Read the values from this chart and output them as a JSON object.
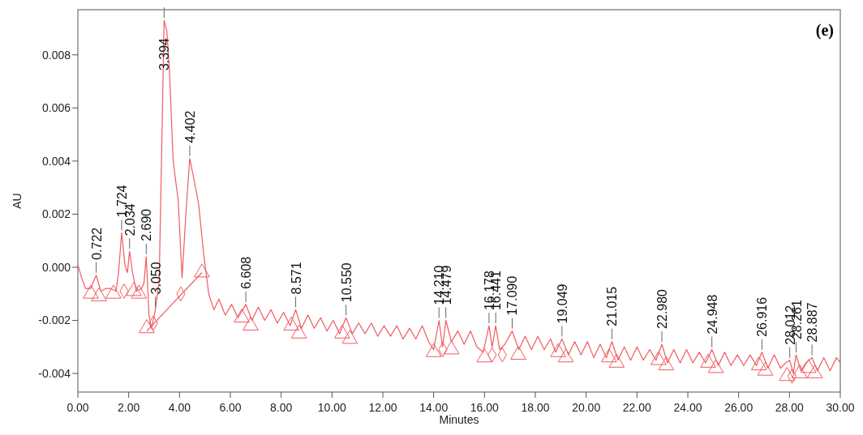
{
  "chart_data": {
    "type": "line",
    "xlabel": "Minutes",
    "ylabel": "AU",
    "xlim": [
      0,
      30
    ],
    "ylim": [
      -0.0047,
      0.0097
    ],
    "xticks": [
      {
        "value": 0,
        "label": "0.00"
      },
      {
        "value": 2,
        "label": "2.00"
      },
      {
        "value": 4,
        "label": "4.00"
      },
      {
        "value": 6,
        "label": "6.00"
      },
      {
        "value": 8,
        "label": "8.00"
      },
      {
        "value": 10,
        "label": "10.00"
      },
      {
        "value": 12,
        "label": "12.00"
      },
      {
        "value": 14,
        "label": "14.00"
      },
      {
        "value": 16,
        "label": "16.00"
      },
      {
        "value": 18,
        "label": "18.00"
      },
      {
        "value": 20,
        "label": "20.00"
      },
      {
        "value": 22,
        "label": "22.00"
      },
      {
        "value": 24,
        "label": "24.00"
      },
      {
        "value": 26,
        "label": "26.00"
      },
      {
        "value": 28,
        "label": "28.00"
      },
      {
        "value": 30,
        "label": "30.00"
      }
    ],
    "yticks": [
      -0.004,
      -0.002,
      {
        "value": 0,
        "label": "0.000"
      },
      0.002,
      0.004,
      0.006,
      0.008
    ],
    "grid": false,
    "series": [
      {
        "color": "#f05a5f",
        "marker": "none",
        "x": [
          0,
          0.15,
          0.3,
          0.5,
          0.722,
          0.9,
          1.1,
          1.3,
          1.5,
          1.6,
          1.724,
          1.85,
          1.95,
          2.034,
          2.15,
          2.3,
          2.5,
          2.6,
          2.69,
          2.8,
          2.9,
          3.05,
          3.2,
          3.3,
          3.394,
          3.5,
          3.6,
          3.75,
          3.95,
          4.1,
          4.25,
          4.402,
          4.55,
          4.75,
          4.95,
          5.15,
          5.35,
          5.55,
          5.8,
          6.05,
          6.3,
          6.608,
          6.85,
          7.1,
          7.35,
          7.6,
          7.85,
          8.1,
          8.35,
          8.571,
          8.8,
          9.05,
          9.3,
          9.55,
          9.8,
          10.05,
          10.3,
          10.55,
          10.8,
          11.05,
          11.3,
          11.55,
          11.8,
          12.05,
          12.3,
          12.55,
          12.8,
          13.05,
          13.3,
          13.55,
          13.8,
          14.0,
          14.21,
          14.35,
          14.479,
          14.7,
          14.95,
          15.2,
          15.45,
          15.7,
          15.95,
          16.178,
          16.3,
          16.441,
          16.6,
          16.8,
          17.09,
          17.35,
          17.6,
          17.85,
          18.1,
          18.35,
          18.6,
          18.8,
          19.049,
          19.3,
          19.55,
          19.8,
          20.05,
          20.3,
          20.55,
          20.8,
          21.015,
          21.25,
          21.5,
          21.75,
          22.0,
          22.25,
          22.5,
          22.75,
          22.98,
          23.2,
          23.45,
          23.7,
          23.95,
          24.2,
          24.45,
          24.7,
          24.948,
          25.2,
          25.45,
          25.7,
          25.95,
          26.2,
          26.45,
          26.7,
          26.916,
          27.15,
          27.4,
          27.65,
          27.85,
          28.012,
          28.15,
          28.261,
          28.45,
          28.65,
          28.887,
          29.1,
          29.35,
          29.6,
          29.85,
          30
        ],
        "values": [
          0.0001,
          -0.0004,
          -0.0008,
          -0.0008,
          -0.0003,
          -0.0009,
          -0.0008,
          -0.0008,
          -0.0009,
          -0.0002,
          0.0013,
          0.0001,
          -0.0002,
          0.0006,
          -0.0002,
          -0.0009,
          -0.0008,
          -0.0006,
          0.0004,
          -0.0018,
          -0.0023,
          -0.0016,
          -0.0005,
          0.0045,
          0.0093,
          0.0089,
          0.0075,
          0.004,
          0.0025,
          -0.0004,
          0.002,
          0.0041,
          0.0034,
          0.0024,
          0.0005,
          -0.001,
          -0.0016,
          -0.0012,
          -0.0018,
          -0.0014,
          -0.0019,
          -0.0014,
          -0.002,
          -0.0015,
          -0.002,
          -0.0016,
          -0.0021,
          -0.0017,
          -0.0022,
          -0.0016,
          -0.0023,
          -0.0018,
          -0.0023,
          -0.0019,
          -0.0024,
          -0.002,
          -0.0025,
          -0.0019,
          -0.0025,
          -0.0021,
          -0.0025,
          -0.0021,
          -0.0026,
          -0.0022,
          -0.0026,
          -0.0022,
          -0.0027,
          -0.0023,
          -0.0027,
          -0.0022,
          -0.0028,
          -0.0031,
          -0.002,
          -0.003,
          -0.002,
          -0.0028,
          -0.0024,
          -0.0029,
          -0.0024,
          -0.003,
          -0.0032,
          -0.0022,
          -0.003,
          -0.0022,
          -0.0031,
          -0.0029,
          -0.0024,
          -0.0031,
          -0.0026,
          -0.0031,
          -0.0026,
          -0.0031,
          -0.0027,
          -0.0032,
          -0.0027,
          -0.0033,
          -0.0028,
          -0.0033,
          -0.0028,
          -0.0034,
          -0.0029,
          -0.0034,
          -0.0028,
          -0.0035,
          -0.003,
          -0.0035,
          -0.003,
          -0.0035,
          -0.0031,
          -0.0035,
          -0.0029,
          -0.0036,
          -0.0031,
          -0.0036,
          -0.0031,
          -0.0036,
          -0.0032,
          -0.0036,
          -0.0031,
          -0.0037,
          -0.0032,
          -0.0037,
          -0.0033,
          -0.0037,
          -0.0033,
          -0.0037,
          -0.0032,
          -0.0038,
          -0.0033,
          -0.0038,
          -0.0036,
          -0.0035,
          -0.004,
          -0.0033,
          -0.0039,
          -0.0036,
          -0.0034,
          -0.0039,
          -0.0034,
          -0.0039,
          -0.0034,
          -0.0036
        ]
      },
      {
        "type": "line",
        "color": "#f05a5f",
        "marker": "none",
        "x": [
          2.71,
          4.88
        ],
        "values": [
          -0.0024,
          -0.0002
        ]
      },
      {
        "type": "scatter",
        "color": "#f05a5f",
        "marker": "triangle",
        "x": [
          0.51,
          0.83,
          1.4,
          2.2,
          2.4,
          2.71,
          4.88,
          6.45,
          6.8,
          8.4,
          8.7,
          10.4,
          10.7,
          14.0,
          14.7,
          16.0,
          17.33,
          18.9,
          19.2,
          20.9,
          21.2,
          22.85,
          23.15,
          24.8,
          25.1,
          26.8,
          27.05,
          27.9,
          28.4,
          28.75,
          29.0
        ],
        "values": [
          -0.001,
          -0.0011,
          -0.001,
          -0.0009,
          -0.001,
          -0.0023,
          -0.0002,
          -0.0019,
          -0.0022,
          -0.0022,
          -0.0025,
          -0.0025,
          -0.0027,
          -0.0032,
          -0.0031,
          -0.0034,
          -0.0033,
          -0.0032,
          -0.0034,
          -0.0034,
          -0.0036,
          -0.0035,
          -0.0037,
          -0.0036,
          -0.0038,
          -0.0037,
          -0.0039,
          -0.0041,
          -0.004,
          -0.0038,
          -0.004
        ]
      },
      {
        "type": "scatter",
        "color": "#f05a5f",
        "marker": "diamond",
        "x": [
          1.82,
          2.97,
          4.05,
          14.36,
          16.3,
          16.7,
          28.1
        ],
        "values": [
          -0.0009,
          -0.0021,
          -0.001,
          -0.0031,
          -0.0033,
          -0.0033,
          -0.0041
        ]
      }
    ],
    "annotations": [
      {
        "text": "0.722",
        "x": 0.722,
        "y": -0.0003
      },
      {
        "text": "1.724",
        "x": 1.724,
        "y": 0.0013
      },
      {
        "text": "2.034",
        "x": 2.034,
        "y": 0.0006
      },
      {
        "text": "2.690",
        "x": 2.69,
        "y": 0.0004
      },
      {
        "text": "3.050",
        "x": 3.05,
        "y": -0.0016
      },
      {
        "text": "3.394",
        "x": 3.394,
        "y": 0.0093
      },
      {
        "text": "4.402",
        "x": 4.402,
        "y": 0.0041
      },
      {
        "text": "6.608",
        "x": 6.608,
        "y": -0.0014
      },
      {
        "text": "8.571",
        "x": 8.571,
        "y": -0.0016
      },
      {
        "text": "10.550",
        "x": 10.55,
        "y": -0.0019
      },
      {
        "text": "14.210",
        "x": 14.21,
        "y": -0.002
      },
      {
        "text": "14.479",
        "x": 14.479,
        "y": -0.002
      },
      {
        "text": "16.178",
        "x": 16.178,
        "y": -0.0022
      },
      {
        "text": "16.441",
        "x": 16.441,
        "y": -0.0022
      },
      {
        "text": "17.090",
        "x": 17.09,
        "y": -0.0024
      },
      {
        "text": "19.049",
        "x": 19.049,
        "y": -0.0027
      },
      {
        "text": "21.015",
        "x": 21.015,
        "y": -0.0028
      },
      {
        "text": "22.980",
        "x": 22.98,
        "y": -0.0029
      },
      {
        "text": "24.948",
        "x": 24.948,
        "y": -0.0031
      },
      {
        "text": "26.916",
        "x": 26.916,
        "y": -0.0032
      },
      {
        "text": "28.012",
        "x": 28.012,
        "y": -0.0035
      },
      {
        "text": "28.261",
        "x": 28.261,
        "y": -0.0033
      },
      {
        "text": "28.887",
        "x": 28.887,
        "y": -0.0034
      },
      "(e)"
    ]
  }
}
